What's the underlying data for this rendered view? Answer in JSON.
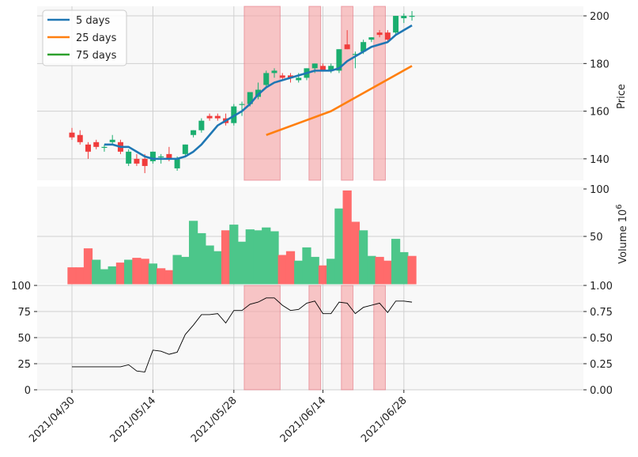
{
  "chart_data": {
    "type": "candlestick",
    "dates": [
      "2021/04/30",
      "2021/05/03",
      "2021/05/04",
      "2021/05/05",
      "2021/05/06",
      "2021/05/07",
      "2021/05/10",
      "2021/05/11",
      "2021/05/12",
      "2021/05/13",
      "2021/05/14",
      "2021/05/17",
      "2021/05/18",
      "2021/05/19",
      "2021/05/20",
      "2021/05/21",
      "2021/05/24",
      "2021/05/25",
      "2021/05/26",
      "2021/05/27",
      "2021/05/28",
      "2021/05/31",
      "2021/06/01",
      "2021/06/02",
      "2021/06/03",
      "2021/06/04",
      "2021/06/07",
      "2021/06/08",
      "2021/06/09",
      "2021/06/10",
      "2021/06/11",
      "2021/06/14",
      "2021/06/15",
      "2021/06/16",
      "2021/06/17",
      "2021/06/18",
      "2021/06/21",
      "2021/06/22",
      "2021/06/23",
      "2021/06/24",
      "2021/06/25",
      "2021/06/28",
      "2021/06/29"
    ],
    "ohlc": [
      [
        151,
        153,
        148,
        149
      ],
      [
        150,
        152,
        146,
        147
      ],
      [
        146,
        147,
        140,
        143
      ],
      [
        147,
        148,
        144,
        145
      ],
      [
        145,
        146,
        143,
        145
      ],
      [
        147,
        150,
        146,
        148
      ],
      [
        147,
        148,
        142,
        143
      ],
      [
        138,
        144,
        137,
        143
      ],
      [
        140,
        142,
        137,
        138
      ],
      [
        140,
        142,
        134,
        137
      ],
      [
        139,
        143,
        138,
        143
      ],
      [
        141,
        142,
        138,
        141
      ],
      [
        142,
        145,
        139,
        140
      ],
      [
        136,
        141,
        135,
        140
      ],
      [
        142,
        146,
        141,
        146
      ],
      [
        150,
        152,
        149,
        152
      ],
      [
        152,
        157,
        151,
        156
      ],
      [
        158,
        159,
        156,
        157
      ],
      [
        158,
        159,
        156,
        157
      ],
      [
        157,
        159,
        154,
        155
      ],
      [
        155,
        163,
        154,
        162
      ],
      [
        163,
        164,
        158,
        163
      ],
      [
        163,
        168,
        162,
        168
      ],
      [
        166,
        172,
        165,
        169
      ],
      [
        171,
        177,
        170,
        176
      ],
      [
        176,
        178,
        174,
        177
      ],
      [
        175,
        176,
        173,
        174
      ],
      [
        175,
        176,
        172,
        174
      ],
      [
        173,
        176,
        172,
        174
      ],
      [
        174,
        178,
        173,
        178
      ],
      [
        178,
        180,
        176,
        180
      ],
      [
        179,
        180,
        177,
        177
      ],
      [
        177,
        180,
        176,
        179
      ],
      [
        177,
        186,
        176,
        186
      ],
      [
        188,
        194,
        186,
        186
      ],
      [
        184,
        185,
        178,
        184
      ],
      [
        185,
        190,
        184,
        189
      ],
      [
        190,
        191,
        189,
        191
      ],
      [
        193,
        194,
        191,
        192
      ],
      [
        193,
        194,
        189,
        190
      ],
      [
        193,
        200,
        192,
        200
      ],
      [
        199,
        201,
        197,
        200
      ],
      [
        200,
        202,
        198,
        200
      ]
    ],
    "ma5": [
      null,
      null,
      null,
      null,
      146,
      146,
      145,
      145,
      143,
      141,
      140,
      140,
      140,
      140,
      141,
      143,
      146,
      150,
      154,
      156,
      158,
      160,
      163,
      167,
      170,
      172,
      173,
      174,
      175,
      176,
      177,
      177,
      177,
      178,
      181,
      183,
      185,
      187,
      188,
      189,
      192,
      194,
      196
    ],
    "ma25": [
      null,
      null,
      null,
      null,
      null,
      null,
      null,
      null,
      null,
      null,
      null,
      null,
      null,
      null,
      null,
      null,
      null,
      null,
      null,
      null,
      null,
      null,
      null,
      null,
      150,
      null,
      null,
      null,
      null,
      null,
      null,
      null,
      160,
      null,
      null,
      null,
      null,
      null,
      null,
      null,
      null,
      null,
      179
    ],
    "volume": [
      17,
      17,
      37,
      25,
      15,
      18,
      22,
      25,
      27,
      26,
      21,
      16,
      14,
      30,
      28,
      66,
      53,
      40,
      34,
      56,
      62,
      44,
      57,
      56,
      59,
      55,
      30,
      34,
      24,
      38,
      28,
      19,
      26,
      79,
      98,
      65,
      56,
      29,
      28,
      24,
      47,
      33,
      29
    ],
    "volume_up": [
      false,
      false,
      false,
      true,
      true,
      true,
      false,
      true,
      false,
      false,
      true,
      false,
      false,
      true,
      true,
      true,
      true,
      true,
      true,
      false,
      true,
      true,
      true,
      true,
      true,
      true,
      false,
      false,
      true,
      true,
      true,
      false,
      true,
      true,
      false,
      false,
      true,
      true,
      false,
      false,
      true,
      true,
      false
    ],
    "indicator": [
      22,
      22,
      22,
      22,
      22,
      22,
      22,
      24,
      18,
      17,
      38,
      37,
      34,
      36,
      53,
      62,
      72,
      72,
      73,
      64,
      76,
      76,
      82,
      84,
      88,
      88,
      81,
      76,
      77,
      83,
      85,
      73,
      73,
      84,
      83,
      73,
      79,
      81,
      83,
      74,
      85,
      85,
      84
    ],
    "highlight_ranges": [
      [
        "2021/06/01",
        "2021/06/04"
      ],
      [
        "2021/06/11",
        "2021/06/11"
      ],
      [
        "2021/06/17",
        "2021/06/17"
      ],
      [
        "2021/06/23",
        "2021/06/23"
      ]
    ],
    "legend": [
      {
        "label": "5 days",
        "color": "#1f77b4"
      },
      {
        "label": "25 days",
        "color": "#ff7f0e"
      },
      {
        "label": "75 days",
        "color": "#2ca02c"
      }
    ],
    "price_axis": {
      "label": "Price",
      "ticks": [
        140,
        160,
        180,
        200
      ],
      "range": [
        131,
        204
      ]
    },
    "volume_axis": {
      "label": "Volume",
      "multiplier": "10",
      "exponent": "6",
      "ticks": [
        50,
        100
      ],
      "range": [
        0,
        100
      ]
    },
    "indicator_axis": {
      "left_ticks": [
        0,
        25,
        50,
        75,
        100
      ],
      "right_ticks": [
        "0.00",
        "0.25",
        "0.50",
        "0.75",
        "1.00"
      ],
      "range": [
        0,
        100
      ]
    },
    "x_ticks": [
      {
        "date": "2021/04/30",
        "label": "2021/04/30"
      },
      {
        "date": "2021/05/14",
        "label": "2021/05/14"
      },
      {
        "date": "2021/05/28",
        "label": "2021/05/28"
      },
      {
        "date": "2021/06/14",
        "label": "2021/06/14"
      },
      {
        "date": "2021/06/28",
        "label": "2021/06/28"
      }
    ],
    "colors": {
      "up": "#1aae6f",
      "down": "#f03c3c",
      "volume_up": "#4cc68a",
      "volume_down": "#ff6b6b",
      "highlight": "#f7a1a4",
      "grid": "#d0d0d0",
      "panel_bg": "#f8f8f8",
      "indicator_line": "#000000"
    }
  }
}
